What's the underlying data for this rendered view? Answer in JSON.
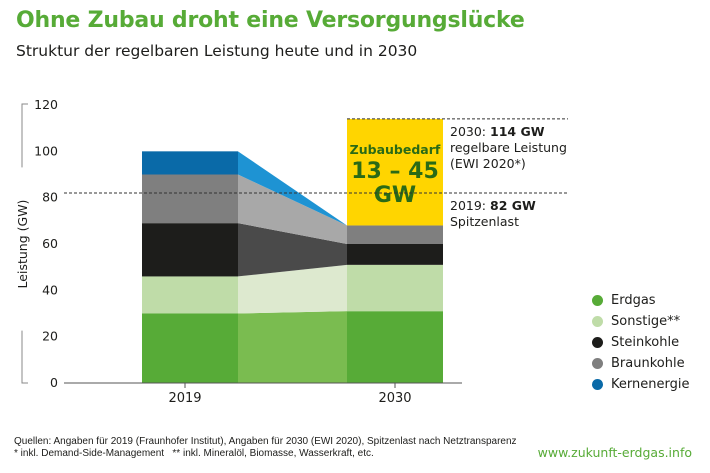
{
  "header": {
    "title": "Ohne Zubau droht eine Versorgungslücke",
    "subtitle": "Struktur der regelbaren Leistung heute und in 2030"
  },
  "chart_data": {
    "type": "bar",
    "stacked": true,
    "title": "Ohne Zubau droht eine Versorgungslücke",
    "subtitle": "Struktur der regelbaren Leistung heute und in 2030",
    "xlabel": "",
    "ylabel": "Leistung (GW)",
    "ylim": [
      0,
      120
    ],
    "yticks": [
      0,
      20,
      40,
      60,
      80,
      100,
      120
    ],
    "categories": [
      "2019",
      "2030"
    ],
    "series": [
      {
        "name": "Erdgas",
        "color": "#57ab37",
        "values": [
          30,
          31
        ]
      },
      {
        "name": "Sonstige**",
        "color": "#bfdca8",
        "values": [
          16,
          20
        ]
      },
      {
        "name": "Steinkohle",
        "color": "#1d1d1b",
        "values": [
          23,
          9
        ]
      },
      {
        "name": "Braunkohle",
        "color": "#7f7f7f",
        "values": [
          21,
          8
        ]
      },
      {
        "name": "Kernenergie",
        "color": "#0a6aa8",
        "values": [
          10,
          0
        ]
      }
    ],
    "transition_colors": [
      "#7abc50",
      "#dde9cf",
      "#4a4a4a",
      "#a8a8a8",
      "#1e93d3"
    ],
    "gap": {
      "label": "Zubaubedarf",
      "range": "13 – 45",
      "unit": "GW",
      "from": 68,
      "to": 114,
      "color": "#ffd500"
    },
    "reference_lines": [
      {
        "value": 114,
        "year": "2030:",
        "value_label": "114 GW",
        "desc": [
          "regelbare Leistung",
          "(EWI 2020*)"
        ]
      },
      {
        "value": 82,
        "year": "2019:",
        "value_label": "82 GW",
        "desc": [
          "Spitzenlast"
        ]
      }
    ],
    "legend_position": "right"
  },
  "legend": [
    {
      "label": "Erdgas",
      "color": "#57ab37"
    },
    {
      "label": "Sonstige**",
      "color": "#bfdca8"
    },
    {
      "label": "Steinkohle",
      "color": "#1d1d1b"
    },
    {
      "label": "Braunkohle",
      "color": "#7f7f7f"
    },
    {
      "label": "Kernenergie",
      "color": "#0a6aa8"
    }
  ],
  "footer": {
    "sources": "Quellen: Angaben für 2019 (Fraunhofer Institut), Angaben für 2030 (EWI 2020), Spitzenlast nach Netztransparenz",
    "notes": "* inkl. Demand-Side-Management   ** inkl. Mineralöl, Biomasse, Wasserkraft, etc.",
    "url": "www.zukunft-erdgas.info"
  }
}
